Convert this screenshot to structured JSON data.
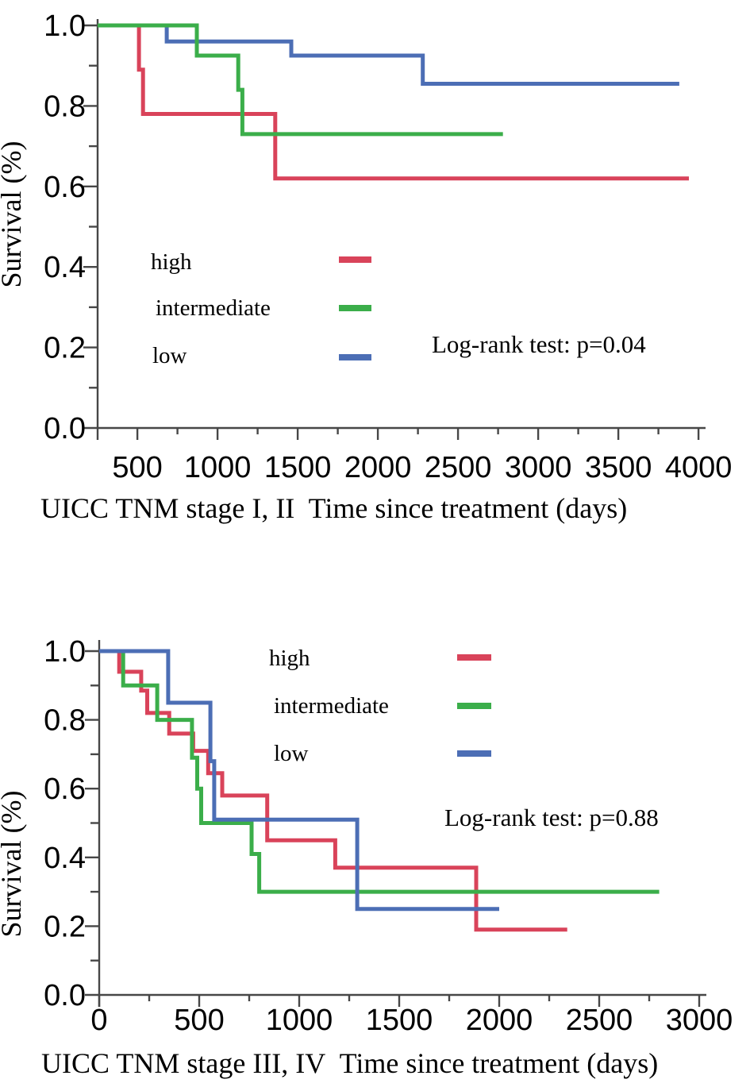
{
  "page": {
    "background": "#ffffff"
  },
  "colors": {
    "high": "#d9435a",
    "intermediate": "#3bae4a",
    "low": "#4c6eb5",
    "axis": "#474747",
    "text": "#000000"
  },
  "chart_data": [
    {
      "type": "line",
      "subtype": "kaplan-meier-step",
      "title": "",
      "xlabel": "UICC TNM stage I, II  Time since treatment (days)",
      "ylabel": "Survival (%)",
      "annotation": "Log-rank test: p=0.04",
      "xlim": [
        250,
        4000
      ],
      "ylim": [
        0.0,
        1.0
      ],
      "xticks": [
        500,
        1000,
        1500,
        2000,
        2500,
        3000,
        3500,
        4000
      ],
      "xtick_labels": [
        "500",
        "1000",
        "1500",
        "2000",
        "2500",
        "3000",
        "3500",
        "4000"
      ],
      "xminor_step": 250,
      "yticks": [
        0.0,
        0.2,
        0.4,
        0.6,
        0.8,
        1.0
      ],
      "ytick_labels": [
        "0.0",
        "0.2",
        "0.4",
        "0.6",
        "0.8",
        "1.0"
      ],
      "yminor_step": 0.1,
      "grid": false,
      "legend_position": "inside-center-left",
      "legend": [
        "high",
        "intermediate",
        "low"
      ],
      "series": [
        {
          "name": "high",
          "points": [
            [
              252,
              1.0
            ],
            [
              510,
              0.89
            ],
            [
              535,
              0.78
            ],
            [
              1360,
              0.62
            ]
          ],
          "end_day": 3940
        },
        {
          "name": "intermediate",
          "points": [
            [
              252,
              1.0
            ],
            [
              871,
              0.925
            ],
            [
              1129,
              0.84
            ],
            [
              1155,
              0.73
            ]
          ],
          "end_day": 2780
        },
        {
          "name": "low",
          "points": [
            [
              252,
              1.0
            ],
            [
              683,
              0.96
            ],
            [
              1460,
              0.925
            ],
            [
              2280,
              0.855
            ]
          ],
          "end_day": 3880
        }
      ],
      "draw_order": [
        0,
        2,
        1
      ]
    },
    {
      "type": "line",
      "subtype": "kaplan-meier-step",
      "title": "",
      "xlabel": "UICC TNM stage III, IV  Time since treatment (days)",
      "ylabel": "Survival (%)",
      "annotation": "Log-rank test: p=0.88",
      "xlim": [
        0,
        3000
      ],
      "ylim": [
        0.0,
        1.0
      ],
      "xticks": [
        0,
        500,
        1000,
        1500,
        2000,
        2500,
        3000
      ],
      "xtick_labels": [
        "0",
        "500",
        "1000",
        "1500",
        "2000",
        "2500",
        "3000"
      ],
      "xminor_step": 250,
      "yticks": [
        0.0,
        0.2,
        0.4,
        0.6,
        0.8,
        1.0
      ],
      "ytick_labels": [
        "0.0",
        "0.2",
        "0.4",
        "0.6",
        "0.8",
        "1.0"
      ],
      "yminor_step": 0.1,
      "grid": false,
      "legend_position": "inside-top-center",
      "legend": [
        "high",
        "intermediate",
        "low"
      ],
      "series": [
        {
          "name": "high",
          "points": [
            [
              0,
              1.0
            ],
            [
              100,
              0.94
            ],
            [
              210,
              0.885
            ],
            [
              240,
              0.82
            ],
            [
              350,
              0.76
            ],
            [
              470,
              0.71
            ],
            [
              545,
              0.645
            ],
            [
              615,
              0.58
            ],
            [
              840,
              0.45
            ],
            [
              1180,
              0.37
            ],
            [
              1885,
              0.19
            ]
          ],
          "end_day": 2340
        },
        {
          "name": "intermediate",
          "points": [
            [
              0,
              1.0
            ],
            [
              120,
              0.9
            ],
            [
              290,
              0.8
            ],
            [
              464,
              0.69
            ],
            [
              490,
              0.6
            ],
            [
              510,
              0.5
            ],
            [
              762,
              0.41
            ],
            [
              800,
              0.3
            ]
          ],
          "end_day": 2800
        },
        {
          "name": "low",
          "points": [
            [
              0,
              1.0
            ],
            [
              345,
              0.85
            ],
            [
              556,
              0.68
            ],
            [
              575,
              0.51
            ],
            [
              1290,
              0.25
            ]
          ],
          "end_day": 2000
        }
      ],
      "draw_order": [
        0,
        1,
        2
      ]
    }
  ]
}
